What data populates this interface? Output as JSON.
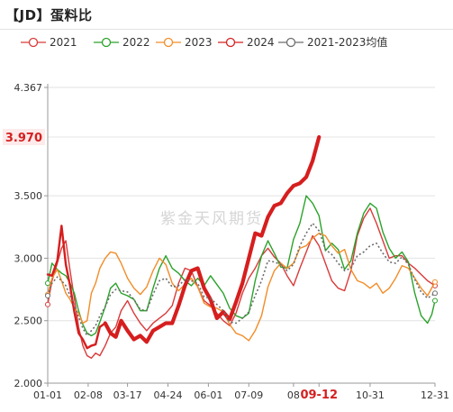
{
  "header": {
    "title": "【JD】蛋料比"
  },
  "watermark": "紫金天风期货",
  "chart_data": {
    "type": "line",
    "title": "【JD】蛋料比",
    "xlabel": "",
    "ylabel": "",
    "ylim": [
      2.0,
      4.367
    ],
    "y_ticks": [
      "2.000",
      "2.500",
      "3.000",
      "3.500",
      "4.367"
    ],
    "x_ticks": [
      "01-01",
      "02-08",
      "03-17",
      "04-24",
      "06-01",
      "07-09",
      "08",
      "09-12",
      "10-31",
      "12-31"
    ],
    "x_tick_days": [
      1,
      39,
      76,
      114,
      152,
      190,
      232,
      256,
      304,
      365
    ],
    "highlight_x": {
      "label": "09-12",
      "color": "#d42020"
    },
    "highlight_y": {
      "label": "3.970",
      "value": 3.97,
      "color": "#d42020"
    },
    "legend_position": "top",
    "grid": "horizontal",
    "series": [
      {
        "name": "2021",
        "color": "#d93a3a",
        "width": 1.4,
        "dashed": false,
        "x": [
          1,
          5,
          10,
          14,
          18,
          22,
          26,
          30,
          34,
          38,
          42,
          46,
          50,
          55,
          60,
          65,
          70,
          76,
          82,
          88,
          94,
          100,
          106,
          112,
          118,
          124,
          130,
          136,
          142,
          148,
          154,
          160,
          166,
          172,
          178,
          184,
          190,
          196,
          202,
          208,
          214,
          220,
          226,
          232,
          238,
          244,
          250,
          256,
          262,
          268,
          274,
          280,
          286,
          292,
          298,
          304,
          310,
          316,
          322,
          328,
          334,
          340,
          346,
          352,
          358,
          365
        ],
        "y": [
          2.63,
          2.82,
          2.96,
          3.08,
          3.14,
          2.9,
          2.68,
          2.45,
          2.3,
          2.22,
          2.2,
          2.24,
          2.22,
          2.3,
          2.4,
          2.45,
          2.58,
          2.66,
          2.56,
          2.48,
          2.42,
          2.48,
          2.52,
          2.56,
          2.62,
          2.8,
          2.92,
          2.9,
          2.77,
          2.66,
          2.62,
          2.56,
          2.5,
          2.46,
          2.56,
          2.72,
          2.84,
          2.92,
          3.02,
          3.08,
          3.01,
          2.96,
          2.86,
          2.78,
          2.92,
          3.05,
          3.18,
          3.1,
          2.96,
          2.82,
          2.76,
          2.74,
          2.9,
          3.18,
          3.32,
          3.4,
          3.28,
          3.14,
          3.0,
          3.02,
          3.02,
          2.96,
          2.92,
          2.87,
          2.82,
          2.78
        ]
      },
      {
        "name": "2022",
        "color": "#2aa22a",
        "width": 1.4,
        "dashed": false,
        "x": [
          1,
          5,
          10,
          14,
          18,
          22,
          26,
          30,
          34,
          38,
          42,
          46,
          50,
          55,
          60,
          65,
          70,
          76,
          82,
          88,
          94,
          100,
          106,
          112,
          118,
          124,
          130,
          136,
          142,
          148,
          154,
          160,
          166,
          172,
          178,
          184,
          190,
          196,
          202,
          208,
          214,
          220,
          226,
          232,
          238,
          244,
          250,
          256,
          262,
          268,
          274,
          280,
          286,
          292,
          298,
          304,
          310,
          316,
          322,
          328,
          334,
          340,
          346,
          352,
          358,
          362,
          365
        ],
        "y": [
          2.8,
          2.96,
          2.91,
          2.88,
          2.86,
          2.8,
          2.72,
          2.58,
          2.47,
          2.4,
          2.38,
          2.4,
          2.49,
          2.61,
          2.76,
          2.8,
          2.72,
          2.7,
          2.67,
          2.58,
          2.58,
          2.76,
          2.92,
          3.02,
          2.92,
          2.88,
          2.82,
          2.78,
          2.84,
          2.78,
          2.86,
          2.79,
          2.72,
          2.6,
          2.54,
          2.52,
          2.56,
          2.82,
          3.02,
          3.14,
          3.04,
          2.93,
          2.92,
          3.15,
          3.28,
          3.5,
          3.44,
          3.34,
          3.06,
          3.12,
          3.07,
          2.91,
          2.98,
          3.2,
          3.36,
          3.44,
          3.4,
          3.21,
          3.08,
          3.0,
          3.05,
          2.97,
          2.72,
          2.54,
          2.48,
          2.55,
          2.66
        ]
      },
      {
        "name": "2023",
        "color": "#f28c28",
        "width": 1.4,
        "dashed": false,
        "x": [
          1,
          5,
          10,
          14,
          18,
          22,
          26,
          30,
          34,
          38,
          42,
          46,
          50,
          55,
          60,
          65,
          70,
          76,
          82,
          88,
          94,
          100,
          106,
          112,
          118,
          124,
          130,
          136,
          142,
          148,
          154,
          160,
          166,
          172,
          178,
          184,
          190,
          196,
          202,
          208,
          214,
          220,
          226,
          232,
          238,
          244,
          250,
          256,
          262,
          268,
          274,
          280,
          286,
          292,
          298,
          304,
          310,
          316,
          322,
          328,
          334,
          340,
          346,
          352,
          358,
          365
        ],
        "y": [
          2.71,
          2.84,
          2.91,
          2.82,
          2.72,
          2.67,
          2.6,
          2.56,
          2.48,
          2.5,
          2.72,
          2.8,
          2.92,
          3.0,
          3.05,
          3.04,
          2.96,
          2.84,
          2.76,
          2.71,
          2.77,
          2.9,
          3.0,
          2.95,
          2.8,
          2.74,
          2.79,
          2.84,
          2.77,
          2.64,
          2.61,
          2.6,
          2.57,
          2.47,
          2.4,
          2.38,
          2.34,
          2.42,
          2.54,
          2.77,
          2.9,
          2.96,
          2.92,
          2.96,
          3.08,
          3.1,
          3.16,
          3.2,
          3.18,
          3.1,
          3.04,
          3.07,
          2.91,
          2.82,
          2.8,
          2.76,
          2.8,
          2.72,
          2.76,
          2.84,
          2.94,
          2.92,
          2.84,
          2.76,
          2.7,
          2.81
        ]
      },
      {
        "name": "2024",
        "color": "#d61e1e",
        "width": 2.4,
        "dashed": false,
        "thick_after": 60,
        "thick_width": 4.2,
        "x": [
          1,
          5,
          10,
          14,
          18,
          22,
          26,
          30,
          34,
          38,
          42,
          46,
          50,
          55,
          60,
          65,
          70,
          76,
          82,
          88,
          94,
          100,
          106,
          112,
          118,
          124,
          130,
          136,
          142,
          148,
          154,
          160,
          166,
          172,
          178,
          184,
          190,
          196,
          202,
          208,
          214,
          220,
          226,
          232,
          238,
          244,
          250,
          256
        ],
        "y": [
          2.87,
          2.86,
          2.98,
          3.26,
          2.95,
          2.78,
          2.57,
          2.4,
          2.35,
          2.28,
          2.3,
          2.31,
          2.45,
          2.48,
          2.4,
          2.37,
          2.5,
          2.42,
          2.35,
          2.38,
          2.33,
          2.42,
          2.45,
          2.48,
          2.48,
          2.62,
          2.78,
          2.9,
          2.92,
          2.76,
          2.67,
          2.52,
          2.57,
          2.51,
          2.65,
          2.8,
          3.0,
          3.2,
          3.18,
          3.33,
          3.42,
          3.44,
          3.52,
          3.58,
          3.6,
          3.65,
          3.78,
          3.97
        ]
      },
      {
        "name": "2021-2023均值",
        "color": "#6d6d6d",
        "width": 1.6,
        "dashed": true,
        "x": [
          1,
          5,
          10,
          14,
          18,
          22,
          26,
          30,
          34,
          38,
          42,
          46,
          50,
          55,
          60,
          65,
          70,
          76,
          82,
          88,
          94,
          100,
          106,
          112,
          118,
          124,
          130,
          136,
          142,
          148,
          154,
          160,
          166,
          172,
          178,
          184,
          190,
          196,
          202,
          208,
          214,
          220,
          226,
          232,
          238,
          244,
          250,
          256,
          262,
          268,
          274,
          280,
          286,
          292,
          298,
          304,
          310,
          316,
          322,
          328,
          334,
          340,
          346,
          352,
          358,
          365
        ],
        "y": [
          2.7,
          2.8,
          2.85,
          2.82,
          2.78,
          2.7,
          2.62,
          2.53,
          2.44,
          2.38,
          2.42,
          2.46,
          2.54,
          2.61,
          2.71,
          2.75,
          2.74,
          2.73,
          2.67,
          2.59,
          2.58,
          2.71,
          2.82,
          2.84,
          2.77,
          2.78,
          2.83,
          2.82,
          2.8,
          2.69,
          2.68,
          2.63,
          2.58,
          2.49,
          2.48,
          2.52,
          2.57,
          2.7,
          2.82,
          2.98,
          2.97,
          2.95,
          2.9,
          2.95,
          3.1,
          3.2,
          3.28,
          3.22,
          3.07,
          3.03,
          2.96,
          2.9,
          2.92,
          3.02,
          3.05,
          3.1,
          3.12,
          3.04,
          2.97,
          2.96,
          3.01,
          2.95,
          2.83,
          2.73,
          2.68,
          2.72
        ]
      }
    ]
  }
}
